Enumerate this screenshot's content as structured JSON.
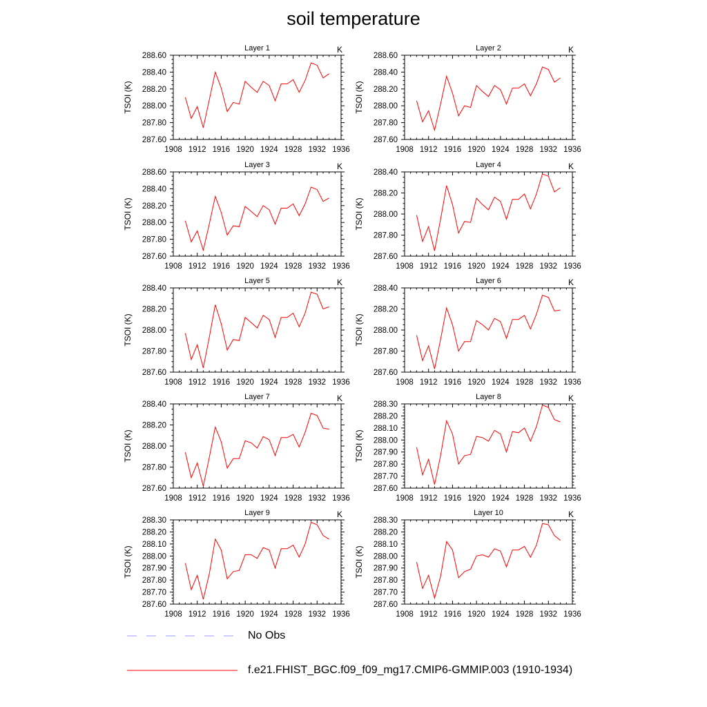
{
  "figure": {
    "title": "soil temperature",
    "legend": [
      {
        "label": "No Obs",
        "color": "#9999ff",
        "style": "dashed"
      },
      {
        "label": "f.e21.FHIST_BGC.f09_f09_mg17.CMIP6-GMMIP.003 (1910-1934)",
        "color": "#ff0000",
        "style": "solid"
      }
    ]
  },
  "chart_data": [
    {
      "type": "line",
      "title": "Layer 1",
      "units": "K",
      "ylabel": "TSOI  (K)",
      "xlim": [
        1908,
        1936
      ],
      "xticks": [
        "1908",
        "1912",
        "1916",
        "1920",
        "1924",
        "1928",
        "1932",
        "1936"
      ],
      "ylim": [
        287.6,
        288.6
      ],
      "yticks": [
        "287.60",
        "287.80",
        "288.00",
        "288.20",
        "288.40",
        "288.60"
      ],
      "x": [
        1910,
        1911,
        1912,
        1913,
        1914,
        1915,
        1916,
        1917,
        1918,
        1919,
        1920,
        1921,
        1922,
        1923,
        1924,
        1925,
        1926,
        1927,
        1928,
        1929,
        1930,
        1931,
        1932,
        1933,
        1934
      ],
      "series": [
        {
          "color": "#ff0000",
          "values": [
            288.1,
            287.85,
            287.99,
            287.74,
            288.07,
            288.4,
            288.21,
            287.93,
            288.04,
            288.02,
            288.29,
            288.22,
            288.16,
            288.29,
            288.24,
            288.06,
            288.26,
            288.26,
            288.31,
            288.16,
            288.3,
            288.51,
            288.48,
            288.33,
            288.38
          ]
        }
      ]
    },
    {
      "type": "line",
      "title": "Layer 2",
      "units": "K",
      "ylabel": "TSOI  (K)",
      "xlim": [
        1908,
        1936
      ],
      "xticks": [
        "1908",
        "1912",
        "1916",
        "1920",
        "1924",
        "1928",
        "1932",
        "1936"
      ],
      "ylim": [
        287.6,
        288.6
      ],
      "yticks": [
        "287.60",
        "287.80",
        "288.00",
        "288.20",
        "288.40",
        "288.60"
      ],
      "x": [
        1910,
        1911,
        1912,
        1913,
        1914,
        1915,
        1916,
        1917,
        1918,
        1919,
        1920,
        1921,
        1922,
        1923,
        1924,
        1925,
        1926,
        1927,
        1928,
        1929,
        1930,
        1931,
        1932,
        1933,
        1934
      ],
      "series": [
        {
          "color": "#ff0000",
          "values": [
            288.06,
            287.81,
            287.94,
            287.71,
            288.02,
            288.35,
            288.15,
            287.88,
            288.0,
            287.98,
            288.24,
            288.17,
            288.11,
            288.24,
            288.19,
            288.02,
            288.21,
            288.21,
            288.26,
            288.12,
            288.26,
            288.46,
            288.43,
            288.28,
            288.33
          ]
        }
      ]
    },
    {
      "type": "line",
      "title": "Layer 3",
      "units": "K",
      "ylabel": "TSOI  (K)",
      "xlim": [
        1908,
        1936
      ],
      "xticks": [
        "1908",
        "1912",
        "1916",
        "1920",
        "1924",
        "1928",
        "1932",
        "1936"
      ],
      "ylim": [
        287.6,
        288.6
      ],
      "yticks": [
        "287.60",
        "287.80",
        "288.00",
        "288.20",
        "288.40",
        "288.60"
      ],
      "x": [
        1910,
        1911,
        1912,
        1913,
        1914,
        1915,
        1916,
        1917,
        1918,
        1919,
        1920,
        1921,
        1922,
        1923,
        1924,
        1925,
        1926,
        1927,
        1928,
        1929,
        1930,
        1931,
        1932,
        1933,
        1934
      ],
      "series": [
        {
          "color": "#ff0000",
          "values": [
            288.02,
            287.77,
            287.9,
            287.67,
            287.98,
            288.31,
            288.12,
            287.85,
            287.96,
            287.95,
            288.19,
            288.13,
            288.07,
            288.2,
            288.15,
            287.98,
            288.17,
            288.17,
            288.22,
            288.08,
            288.22,
            288.42,
            288.39,
            288.25,
            288.29
          ]
        }
      ]
    },
    {
      "type": "line",
      "title": "Layer 4",
      "units": "K",
      "ylabel": "TSOI  (K)",
      "xlim": [
        1908,
        1936
      ],
      "xticks": [
        "1908",
        "1912",
        "1916",
        "1920",
        "1924",
        "1928",
        "1932",
        "1936"
      ],
      "ylim": [
        287.6,
        288.4
      ],
      "yticks": [
        "287.60",
        "287.80",
        "288.00",
        "288.20",
        "288.40"
      ],
      "x": [
        1910,
        1911,
        1912,
        1913,
        1914,
        1915,
        1916,
        1917,
        1918,
        1919,
        1920,
        1921,
        1922,
        1923,
        1924,
        1925,
        1926,
        1927,
        1928,
        1929,
        1930,
        1931,
        1932,
        1933,
        1934
      ],
      "series": [
        {
          "color": "#ff0000",
          "values": [
            287.99,
            287.74,
            287.88,
            287.65,
            287.95,
            288.27,
            288.09,
            287.82,
            287.93,
            287.92,
            288.15,
            288.09,
            288.04,
            288.16,
            288.12,
            287.95,
            288.14,
            288.14,
            288.19,
            288.05,
            288.19,
            288.38,
            288.36,
            288.21,
            288.25
          ]
        }
      ]
    },
    {
      "type": "line",
      "title": "Layer 5",
      "units": "K",
      "ylabel": "TSOI  (K)",
      "xlim": [
        1908,
        1936
      ],
      "xticks": [
        "1908",
        "1912",
        "1916",
        "1920",
        "1924",
        "1928",
        "1932",
        "1936"
      ],
      "ylim": [
        287.6,
        288.4
      ],
      "yticks": [
        "287.60",
        "287.80",
        "288.00",
        "288.20",
        "288.40"
      ],
      "x": [
        1910,
        1911,
        1912,
        1913,
        1914,
        1915,
        1916,
        1917,
        1918,
        1919,
        1920,
        1921,
        1922,
        1923,
        1924,
        1925,
        1926,
        1927,
        1928,
        1929,
        1930,
        1931,
        1932,
        1933,
        1934
      ],
      "series": [
        {
          "color": "#ff0000",
          "values": [
            287.97,
            287.72,
            287.86,
            287.64,
            287.93,
            288.24,
            288.06,
            287.81,
            287.91,
            287.9,
            288.12,
            288.07,
            288.02,
            288.14,
            288.1,
            287.93,
            288.12,
            288.12,
            288.16,
            288.03,
            288.16,
            288.36,
            288.34,
            288.2,
            288.22
          ]
        }
      ]
    },
    {
      "type": "line",
      "title": "Layer 6",
      "units": "K",
      "ylabel": "TSOI  (K)",
      "xlim": [
        1908,
        1936
      ],
      "xticks": [
        "1908",
        "1912",
        "1916",
        "1920",
        "1924",
        "1928",
        "1932",
        "1936"
      ],
      "ylim": [
        287.6,
        288.4
      ],
      "yticks": [
        "287.60",
        "287.80",
        "288.00",
        "288.20",
        "288.40"
      ],
      "x": [
        1910,
        1911,
        1912,
        1913,
        1914,
        1915,
        1916,
        1917,
        1918,
        1919,
        1920,
        1921,
        1922,
        1923,
        1924,
        1925,
        1926,
        1927,
        1928,
        1929,
        1930,
        1931,
        1932,
        1933,
        1934
      ],
      "series": [
        {
          "color": "#ff0000",
          "values": [
            287.95,
            287.71,
            287.85,
            287.63,
            287.91,
            288.21,
            288.05,
            287.8,
            287.89,
            287.89,
            288.09,
            288.05,
            288.0,
            288.11,
            288.08,
            287.92,
            288.1,
            288.1,
            288.14,
            288.01,
            288.15,
            288.33,
            288.31,
            288.18,
            288.19
          ]
        }
      ]
    },
    {
      "type": "line",
      "title": "Layer 7",
      "units": "K",
      "ylabel": "TSOI  (K)",
      "xlim": [
        1908,
        1936
      ],
      "xticks": [
        "1908",
        "1912",
        "1916",
        "1920",
        "1924",
        "1928",
        "1932",
        "1936"
      ],
      "ylim": [
        287.6,
        288.4
      ],
      "yticks": [
        "287.60",
        "287.80",
        "288.00",
        "288.20",
        "288.40"
      ],
      "x": [
        1910,
        1911,
        1912,
        1913,
        1914,
        1915,
        1916,
        1917,
        1918,
        1919,
        1920,
        1921,
        1922,
        1923,
        1924,
        1925,
        1926,
        1927,
        1928,
        1929,
        1930,
        1931,
        1932,
        1933,
        1934
      ],
      "series": [
        {
          "color": "#ff0000",
          "values": [
            287.94,
            287.7,
            287.84,
            287.62,
            287.89,
            288.18,
            288.04,
            287.79,
            287.88,
            287.88,
            288.05,
            288.03,
            287.98,
            288.09,
            288.06,
            287.91,
            288.08,
            288.08,
            288.11,
            287.99,
            288.13,
            288.31,
            288.29,
            288.17,
            288.16
          ]
        }
      ]
    },
    {
      "type": "line",
      "title": "Layer 8",
      "units": "K",
      "ylabel": "TSOI  (K)",
      "xlim": [
        1908,
        1936
      ],
      "xticks": [
        "1908",
        "1912",
        "1916",
        "1920",
        "1924",
        "1928",
        "1932",
        "1936"
      ],
      "ylim": [
        287.6,
        288.3
      ],
      "yticks": [
        "287.60",
        "287.70",
        "287.80",
        "287.90",
        "288.00",
        "288.10",
        "288.20",
        "288.30"
      ],
      "x": [
        1910,
        1911,
        1912,
        1913,
        1914,
        1915,
        1916,
        1917,
        1918,
        1919,
        1920,
        1921,
        1922,
        1923,
        1924,
        1925,
        1926,
        1927,
        1928,
        1929,
        1930,
        1931,
        1932,
        1933,
        1934
      ],
      "series": [
        {
          "color": "#ff0000",
          "values": [
            287.94,
            287.71,
            287.84,
            287.63,
            287.87,
            288.16,
            288.05,
            287.8,
            287.87,
            287.88,
            288.03,
            288.02,
            287.99,
            288.08,
            288.05,
            287.9,
            288.07,
            288.06,
            288.1,
            287.99,
            288.11,
            288.29,
            288.27,
            288.17,
            288.15
          ]
        }
      ]
    },
    {
      "type": "line",
      "title": "Layer 9",
      "units": "K",
      "ylabel": "TSOI  (K)",
      "xlim": [
        1908,
        1936
      ],
      "xticks": [
        "1908",
        "1912",
        "1916",
        "1920",
        "1924",
        "1928",
        "1932",
        "1936"
      ],
      "ylim": [
        287.6,
        288.3
      ],
      "yticks": [
        "287.60",
        "287.70",
        "287.80",
        "287.90",
        "288.00",
        "288.10",
        "288.20",
        "288.30"
      ],
      "x": [
        1910,
        1911,
        1912,
        1913,
        1914,
        1915,
        1916,
        1917,
        1918,
        1919,
        1920,
        1921,
        1922,
        1923,
        1924,
        1925,
        1926,
        1927,
        1928,
        1929,
        1930,
        1931,
        1932,
        1933,
        1934
      ],
      "series": [
        {
          "color": "#ff0000",
          "values": [
            287.94,
            287.72,
            287.84,
            287.64,
            287.85,
            288.14,
            288.05,
            287.81,
            287.87,
            287.88,
            288.01,
            288.01,
            287.98,
            288.07,
            288.05,
            287.9,
            288.06,
            288.06,
            288.09,
            287.99,
            288.1,
            288.28,
            288.26,
            288.17,
            288.14
          ]
        }
      ]
    },
    {
      "type": "line",
      "title": "Layer 10",
      "units": "K",
      "ylabel": "TSOI  (K)",
      "xlim": [
        1908,
        1936
      ],
      "xticks": [
        "1908",
        "1912",
        "1916",
        "1920",
        "1924",
        "1928",
        "1932",
        "1936"
      ],
      "ylim": [
        287.6,
        288.3
      ],
      "yticks": [
        "287.60",
        "287.70",
        "287.80",
        "287.90",
        "288.00",
        "288.10",
        "288.20",
        "288.30"
      ],
      "x": [
        1910,
        1911,
        1912,
        1913,
        1914,
        1915,
        1916,
        1917,
        1918,
        1919,
        1920,
        1921,
        1922,
        1923,
        1924,
        1925,
        1926,
        1927,
        1928,
        1929,
        1930,
        1931,
        1932,
        1933,
        1934
      ],
      "series": [
        {
          "color": "#ff0000",
          "values": [
            287.95,
            287.73,
            287.84,
            287.65,
            287.83,
            288.12,
            288.05,
            287.82,
            287.87,
            287.89,
            288.0,
            288.01,
            287.99,
            288.06,
            288.04,
            287.91,
            288.05,
            288.05,
            288.08,
            287.99,
            288.09,
            288.27,
            288.26,
            288.17,
            288.13
          ]
        }
      ]
    }
  ]
}
